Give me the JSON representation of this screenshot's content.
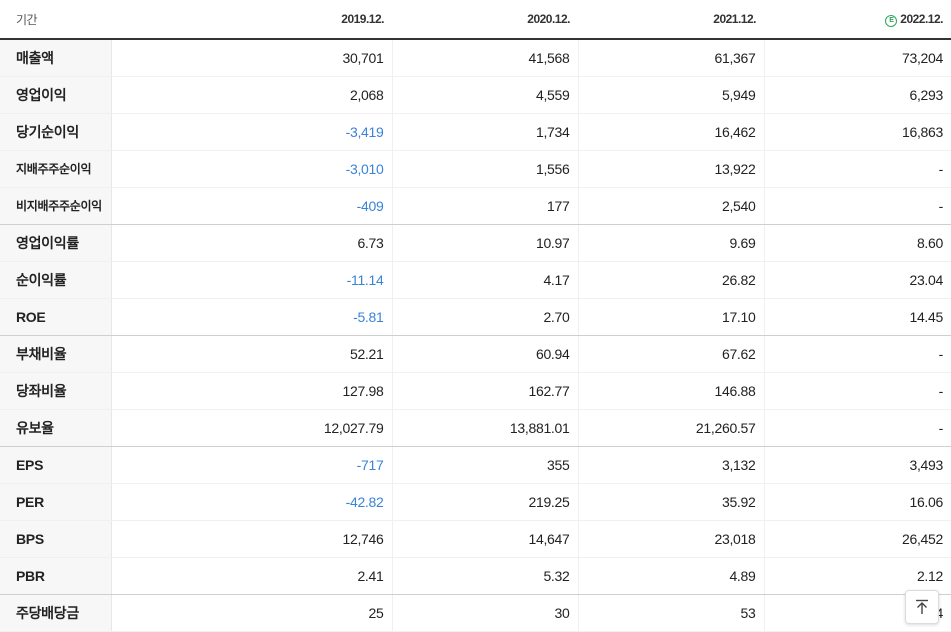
{
  "header": {
    "period_label": "기간",
    "years": [
      "2019.12.",
      "2020.12.",
      "2021.12.",
      "2022.12."
    ],
    "estimate_marker": "E"
  },
  "rows": [
    {
      "label": "매출액",
      "values": [
        "30,701",
        "41,568",
        "61,367",
        "73,204"
      ]
    },
    {
      "label": "영업이익",
      "values": [
        "2,068",
        "4,559",
        "5,949",
        "6,293"
      ]
    },
    {
      "label": "당기순이익",
      "values": [
        "-3,419",
        "1,734",
        "16,462",
        "16,863"
      ]
    },
    {
      "label": "지배주주순이익",
      "values": [
        "-3,010",
        "1,556",
        "13,922",
        "-"
      ]
    },
    {
      "label": "비지배주주순이익",
      "values": [
        "-409",
        "177",
        "2,540",
        "-"
      ]
    },
    {
      "label": "영업이익률",
      "values": [
        "6.73",
        "10.97",
        "9.69",
        "8.60"
      ]
    },
    {
      "label": "순이익률",
      "values": [
        "-11.14",
        "4.17",
        "26.82",
        "23.04"
      ]
    },
    {
      "label": "ROE",
      "values": [
        "-5.81",
        "2.70",
        "17.10",
        "14.45"
      ]
    },
    {
      "label": "부채비율",
      "values": [
        "52.21",
        "60.94",
        "67.62",
        "-"
      ]
    },
    {
      "label": "당좌비율",
      "values": [
        "127.98",
        "162.77",
        "146.88",
        "-"
      ]
    },
    {
      "label": "유보율",
      "values": [
        "12,027.79",
        "13,881.01",
        "21,260.57",
        "-"
      ]
    },
    {
      "label": "EPS",
      "values": [
        "-717",
        "355",
        "3,132",
        "3,493"
      ]
    },
    {
      "label": "PER",
      "values": [
        "-42.82",
        "219.25",
        "35.92",
        "16.06"
      ]
    },
    {
      "label": "BPS",
      "values": [
        "12,746",
        "14,647",
        "23,018",
        "26,452"
      ]
    },
    {
      "label": "PBR",
      "values": [
        "2.41",
        "5.32",
        "4.89",
        "2.12"
      ]
    },
    {
      "label": "주당배당금",
      "values": [
        "25",
        "30",
        "53",
        "4"
      ]
    }
  ],
  "colors": {
    "negative": "#3a83d6",
    "estimate_icon": "#2aa65a"
  },
  "icons": {
    "scroll_top": "arrow-up-to-top-icon"
  }
}
